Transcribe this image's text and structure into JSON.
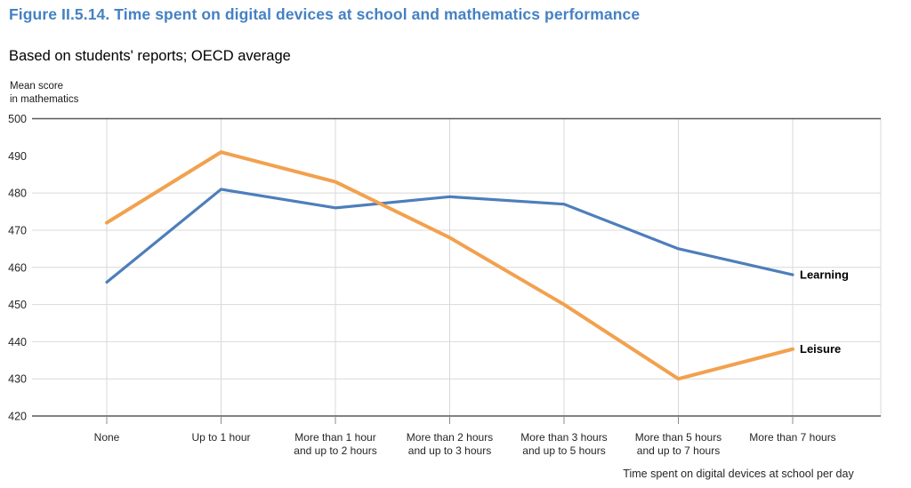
{
  "header": {
    "title": "Figure II.5.14. Time spent on digital devices at school and mathematics performance",
    "subtitle": "Based on students' reports; OECD average"
  },
  "colors": {
    "title_accent": "#4581C3",
    "axis_line": "#595959",
    "gridline": "#D9D9D9",
    "tick_mark": "#8C8C8C",
    "text": "#262626",
    "learning_blue": "#4D7EBB",
    "leisure_orange": "#F2A14E"
  },
  "chart_data": {
    "type": "line",
    "title": "Figure II.5.14. Time spent on digital devices at school and mathematics performance",
    "subtitle": "Based on students' reports; OECD average",
    "ylabel_line1": "Mean score",
    "ylabel_line2": "in mathematics",
    "xlabel": "Time spent on digital devices at school per day",
    "categories": [
      "None",
      "Up to 1 hour",
      "More than 1 hour\nand up to 2 hours",
      "More than 2 hours\nand up to 3 hours",
      "More than 3 hours\nand up to 5 hours",
      "More than 5 hours\nand up to 7 hours",
      "More than 7 hours"
    ],
    "series": [
      {
        "name": "Learning",
        "color": "#4D7EBB",
        "stroke_width": 3.2,
        "values": [
          456,
          481,
          476,
          479,
          477,
          465,
          458
        ]
      },
      {
        "name": "Leisure",
        "color": "#F2A14E",
        "stroke_width": 4,
        "values": [
          472,
          491,
          483,
          468,
          450,
          430,
          438
        ]
      }
    ],
    "ylim": [
      420,
      500
    ],
    "y_ticks": [
      500,
      490,
      480,
      470,
      460,
      450,
      440,
      430,
      420
    ],
    "gridline_y_values": [
      480,
      470,
      460,
      450,
      440,
      430
    ],
    "grid": "on",
    "legend_position": "line-end-labels"
  }
}
